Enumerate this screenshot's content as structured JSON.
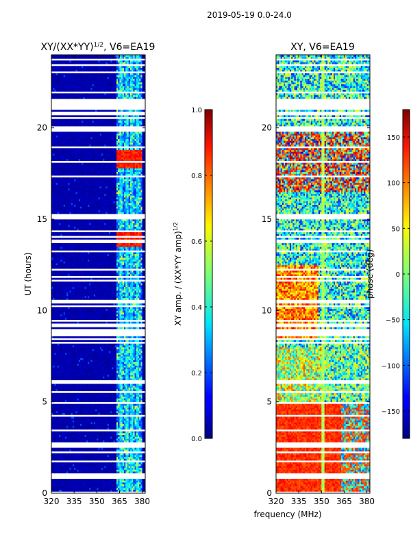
{
  "figure": {
    "suptitle": "2019-05-19 0.0-24.0",
    "xlabel": "frequency (MHz)"
  },
  "chart_data": [
    {
      "type": "heatmap",
      "title_main": "XY/(XX*YY)",
      "title_exp": "1/2",
      "title_rest": ", V6=EA19",
      "ylabel": "UT (hours)",
      "xlim": [
        320,
        382
      ],
      "ylim": [
        0,
        24
      ],
      "xticks": [
        320,
        335,
        350,
        365,
        380
      ],
      "yticks": [
        0,
        5,
        10,
        15,
        20
      ],
      "colorbar": {
        "label_main": "XY amp. / (XX*YY amp)",
        "label_exp": "1/2",
        "range": [
          0.0,
          1.0
        ],
        "ticks": [
          "0.0",
          "0.2",
          "0.4",
          "0.6",
          "0.8",
          "1.0"
        ]
      }
    },
    {
      "type": "heatmap",
      "title": "XY, V6=EA19",
      "xlim": [
        320,
        382
      ],
      "ylim": [
        0,
        24
      ],
      "xticks": [
        320,
        335,
        350,
        365,
        380
      ],
      "yticks": [
        0,
        5,
        10,
        15,
        20
      ],
      "colorbar": {
        "label": "phase (deg)",
        "range": [
          -180,
          180
        ],
        "ticks": [
          "−150",
          "−100",
          "−50",
          "0",
          "50",
          "100",
          "150"
        ]
      }
    }
  ]
}
